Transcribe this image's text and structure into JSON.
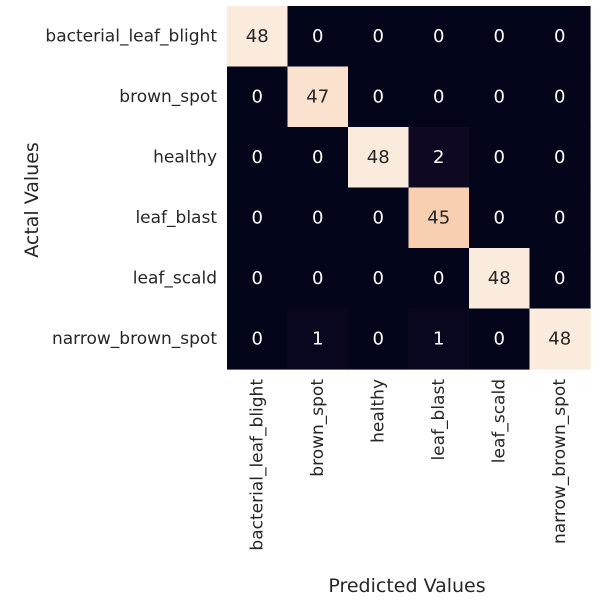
{
  "chart_data": {
    "type": "heatmap",
    "title": "",
    "xlabel": "Predicted Values",
    "ylabel": "Actal Values",
    "x_categories": [
      "bacterial_leaf_blight",
      "brown_spot",
      "healthy",
      "leaf_blast",
      "leaf_scald",
      "narrow_brown_spot"
    ],
    "y_categories": [
      "bacterial_leaf_blight",
      "brown_spot",
      "healthy",
      "leaf_blast",
      "leaf_scald",
      "narrow_brown_spot"
    ],
    "values": [
      [
        48,
        0,
        0,
        0,
        0,
        0
      ],
      [
        0,
        47,
        0,
        0,
        0,
        0
      ],
      [
        0,
        0,
        48,
        2,
        0,
        0
      ],
      [
        0,
        0,
        0,
        45,
        0,
        0
      ],
      [
        0,
        0,
        0,
        0,
        48,
        0
      ],
      [
        0,
        1,
        0,
        1,
        0,
        48
      ]
    ],
    "vmin": 0,
    "vmax": 48,
    "colorbar": false,
    "grid": false
  }
}
